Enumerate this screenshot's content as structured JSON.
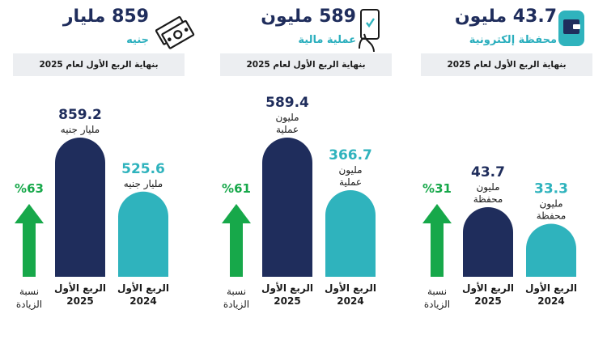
{
  "colors": {
    "dark_navy": "#1f2d5c",
    "teal": "#2fb3bd",
    "green": "#17a84a",
    "period_bg": "#eceef1"
  },
  "panels": [
    {
      "headline": "859 مليار",
      "subline": "جنيه",
      "icon": "money-bills-icon",
      "period": "بنهاية الربع الأول لعام 2025"
    },
    {
      "headline": "589 مليون",
      "subline": "عملية مالية",
      "icon": "mobile-phone-check-icon",
      "period": "بنهاية الربع الأول لعام 2025"
    },
    {
      "headline": "43.7 مليون",
      "subline": "محفظة إلكترونية",
      "icon": "wallet-icon",
      "period": "بنهاية الربع الأول لعام 2025"
    }
  ],
  "chart_data": [
    {
      "type": "bar",
      "categories": [
        "الربع الأول 2025",
        "الربع الأول 2024"
      ],
      "values": [
        859.2,
        525.6
      ],
      "value_labels": [
        "859.2",
        "525.6"
      ],
      "unit_lines": [
        [
          "مليار جنيه"
        ],
        [
          "مليار جنيه"
        ]
      ],
      "increase": "%63",
      "increase_label": [
        "نسبة",
        "الزيادة"
      ]
    },
    {
      "type": "bar",
      "categories": [
        "الربع الأول 2025",
        "الربع الأول 2024"
      ],
      "values": [
        589.4,
        366.7
      ],
      "value_labels": [
        "589.4",
        "366.7"
      ],
      "unit_lines": [
        [
          "مليون",
          "عملية"
        ],
        [
          "مليون",
          "عملية"
        ]
      ],
      "increase": "%61",
      "increase_label": [
        "نسبة",
        "الزيادة"
      ]
    },
    {
      "type": "bar",
      "categories": [
        "الربع الأول 2025",
        "الربع الأول 2024"
      ],
      "values": [
        43.7,
        33.3
      ],
      "value_labels": [
        "43.7",
        "33.3"
      ],
      "unit_lines": [
        [
          "مليون",
          "محفظة"
        ],
        [
          "مليون",
          "محفظة"
        ]
      ],
      "increase": "%31",
      "increase_label": [
        "نسبة",
        "الزيادة"
      ]
    }
  ]
}
